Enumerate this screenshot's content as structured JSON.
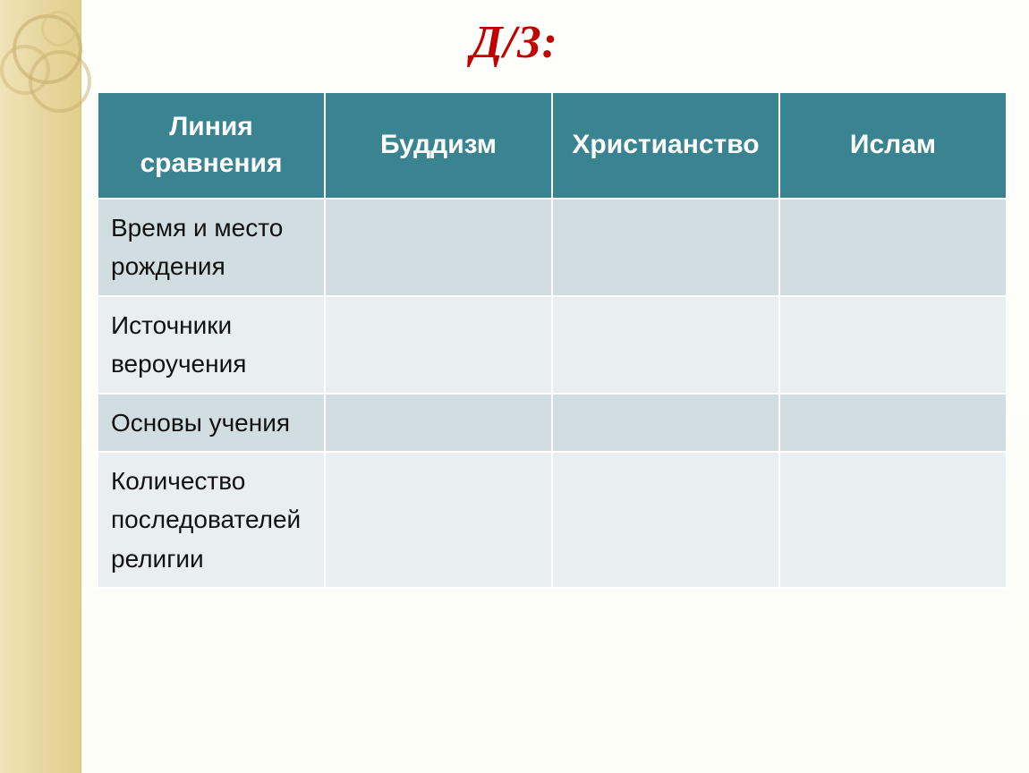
{
  "title": "Д/З:",
  "table": {
    "type": "table",
    "header_bg": "#3a8491",
    "header_fg": "#ffffff",
    "row_band_a": "#d1dee1",
    "row_band_b": "#e9eff1",
    "border_color": "#ffffff",
    "header_fontsize": 30,
    "cell_fontsize": 28,
    "columns": [
      "Линия сравнения",
      "Буддизм",
      "Христианство",
      "Ислам"
    ],
    "rows": [
      {
        "label": "Время и место рождения",
        "buddhism": "",
        "christianity": "",
        "islam": ""
      },
      {
        "label": "Источники вероучения",
        "buddhism": "",
        "christianity": "",
        "islam": ""
      },
      {
        "label": "Основы учения",
        "buddhism": "",
        "christianity": "",
        "islam": ""
      },
      {
        "label": "Количество последователей религии",
        "buddhism": "",
        "christianity": "",
        "islam": ""
      }
    ]
  },
  "decor": {
    "strip_color": "#e8d7a0",
    "ring_color": "#c2aa66"
  },
  "title_color": "#c00000",
  "title_fontsize": 52
}
